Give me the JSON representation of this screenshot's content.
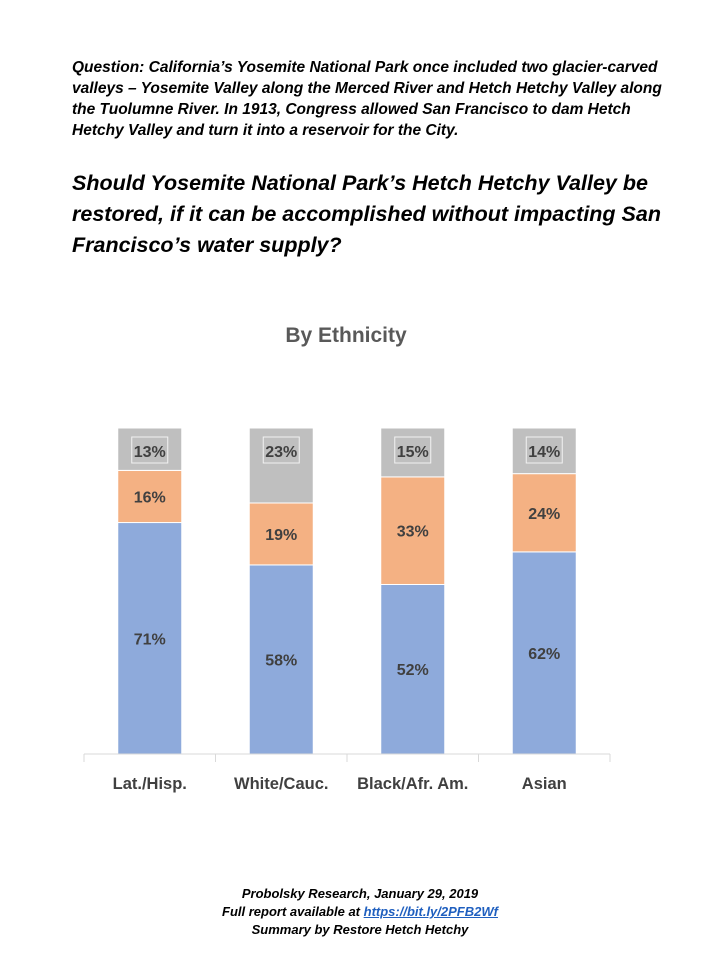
{
  "question": "Question: California’s Yosemite National Park once included two glacier-carved valleys – Yosemite Valley along the Merced River and Hetch Hetchy Valley along the Tuolumne River. In 1913, Congress allowed San Francisco to dam Hetch Hetchy Valley and turn it into a reservoir for the City.",
  "main_question": "Should Yosemite National Park’s Hetch Hetchy Valley be restored, if it can be accomplished without impacting San Francisco’s water supply?",
  "footer": {
    "line1": "Probolsky Research, January 29, 2019",
    "line2_prefix": "Full report available at ",
    "link_text": "https://bit.ly/2PFB2Wf",
    "line3": "Summary by Restore Hetch Hetchy"
  },
  "chart_data": {
    "type": "bar",
    "stacked": true,
    "title": "By Ethnicity",
    "categories": [
      "Lat./Hisp.",
      "White/Cauc.",
      "Black/Afr. Am.",
      "Asian"
    ],
    "series": [
      {
        "values": [
          71,
          58,
          52,
          62
        ],
        "labels": [
          "71%",
          "58%",
          "52%",
          "62%"
        ],
        "color": "#8eaadb"
      },
      {
        "values": [
          16,
          19,
          33,
          24
        ],
        "labels": [
          "16%",
          "19%",
          "33%",
          "24%"
        ],
        "color": "#f4b183"
      },
      {
        "values": [
          13,
          23,
          15,
          14
        ],
        "labels": [
          "13%",
          "23%",
          "15%",
          "14%"
        ],
        "color": "#bfbfbf"
      }
    ],
    "ylim": [
      0,
      100
    ],
    "grid": false,
    "legend": "none"
  }
}
